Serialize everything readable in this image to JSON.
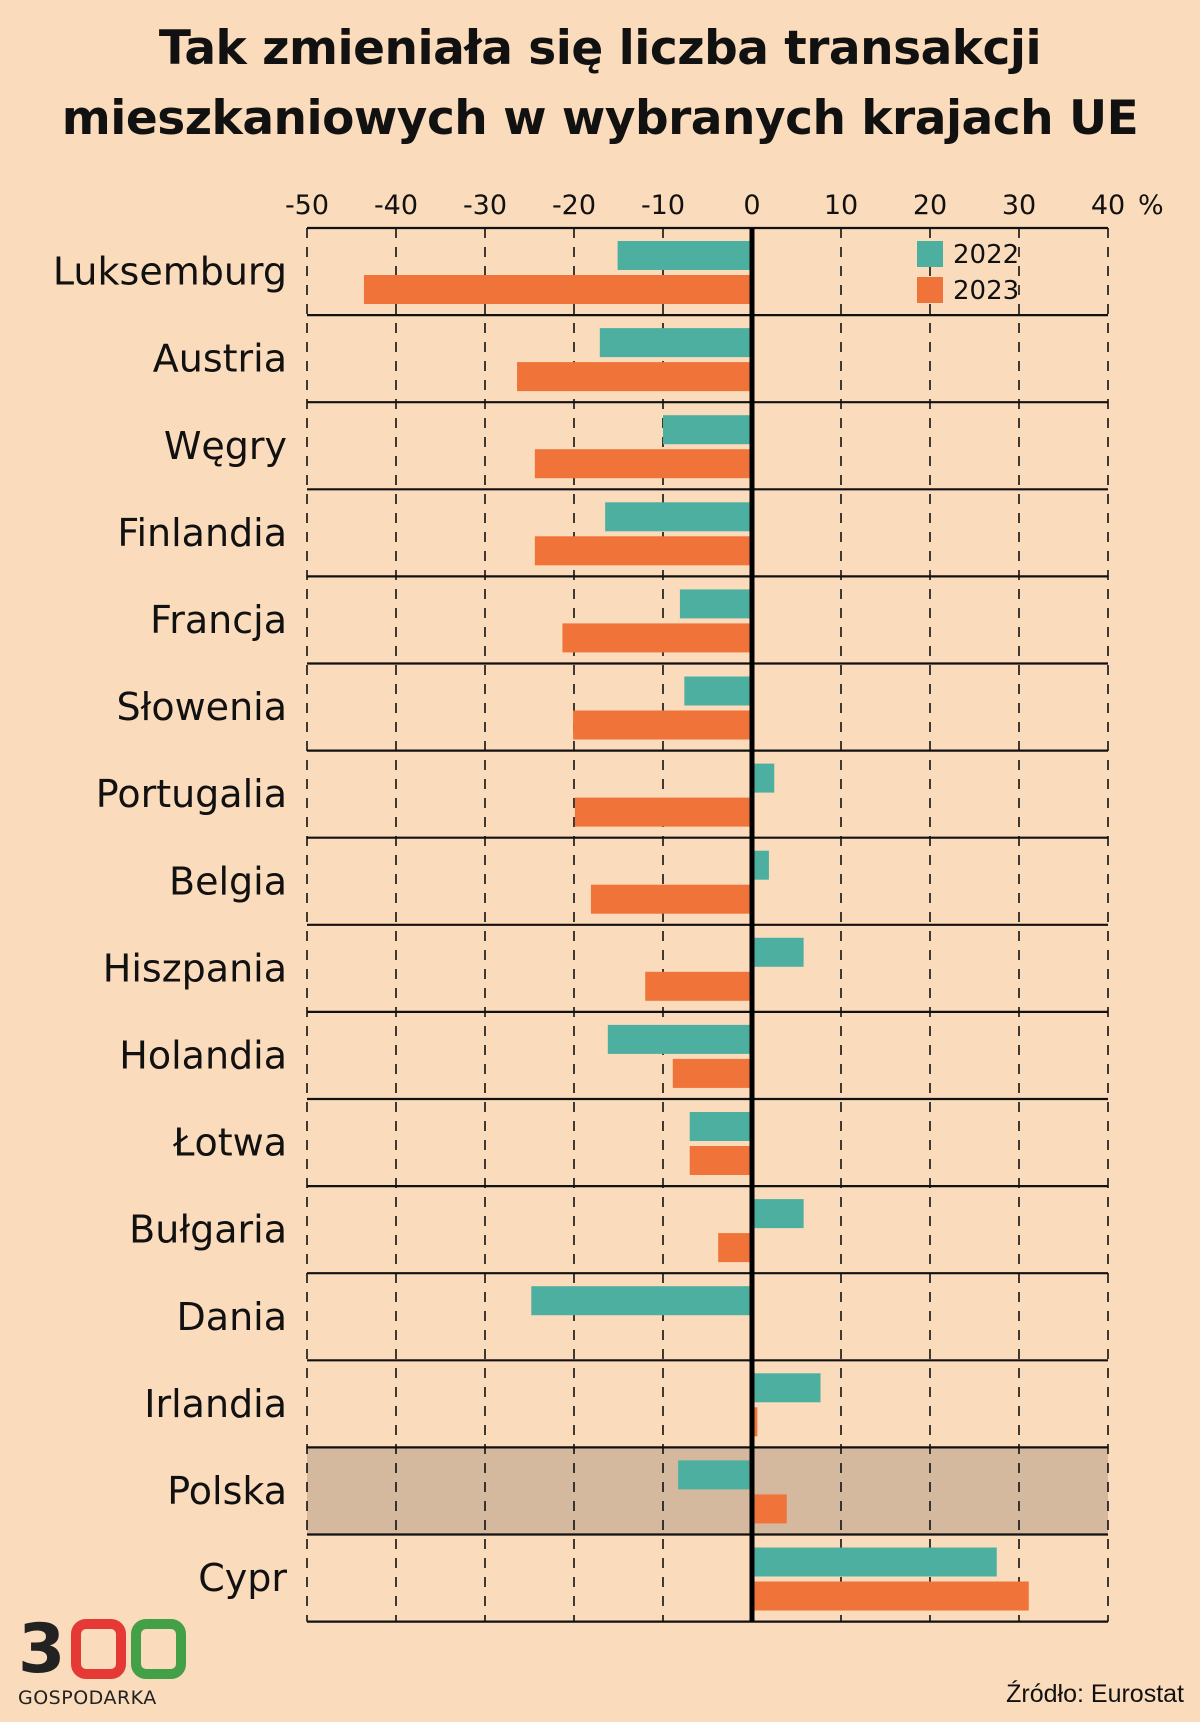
{
  "colors": {
    "background": "#FADBBC",
    "highlight": "#D5B99F",
    "series_2022": "#4DAFA0",
    "series_2023": "#F0733A",
    "logo_3": "#222222",
    "logo_0_red": "#E53935",
    "logo_0_green": "#43A047"
  },
  "title": {
    "line1": "Tak zmieniała się liczba transakcji",
    "line2": "mieszkaniowych w wybranych krajach UE"
  },
  "source": "Źródło: Eurostat",
  "logo": {
    "digits": [
      "3",
      "0",
      "0"
    ],
    "text": "GOSPODARKA"
  },
  "chart_data": {
    "type": "bar",
    "orientation": "horizontal",
    "title": "Tak zmieniała się liczba transakcji mieszkaniowych w wybranych krajach UE",
    "xlabel": "",
    "ylabel": "",
    "unit_label": "%",
    "xlim": [
      -50,
      40
    ],
    "xticks": [
      -50,
      -40,
      -30,
      -20,
      -10,
      0,
      10,
      20,
      30,
      40
    ],
    "xtick_labels": [
      "-50",
      "-40",
      "-30",
      "-20",
      "-10",
      "0",
      "10",
      "20",
      "30",
      "40"
    ],
    "grid": "vertical dashed",
    "legend_position": "top-right",
    "highlight_category": "Polska",
    "categories": [
      "Luksemburg",
      "Austria",
      "Węgry",
      "Finlandia",
      "Francja",
      "Słowenia",
      "Portugalia",
      "Belgia",
      "Hiszpania",
      "Holandia",
      "Łotwa",
      "Bułgaria",
      "Dania",
      "Irlandia",
      "Polska",
      "Cypr"
    ],
    "series": [
      {
        "name": "2022",
        "values": [
          -15.1,
          -17.1,
          -10.0,
          -16.5,
          -8.1,
          -7.6,
          2.5,
          1.9,
          5.8,
          -16.2,
          -7.0,
          5.8,
          -24.8,
          7.7,
          -8.3,
          27.5
        ]
      },
      {
        "name": "2023",
        "values": [
          -43.6,
          -26.4,
          -24.4,
          -24.4,
          -21.3,
          -20.1,
          -19.9,
          -18.1,
          -12.0,
          -8.9,
          -7.0,
          -3.8,
          0,
          0.6,
          3.9,
          31.1
        ]
      }
    ]
  }
}
